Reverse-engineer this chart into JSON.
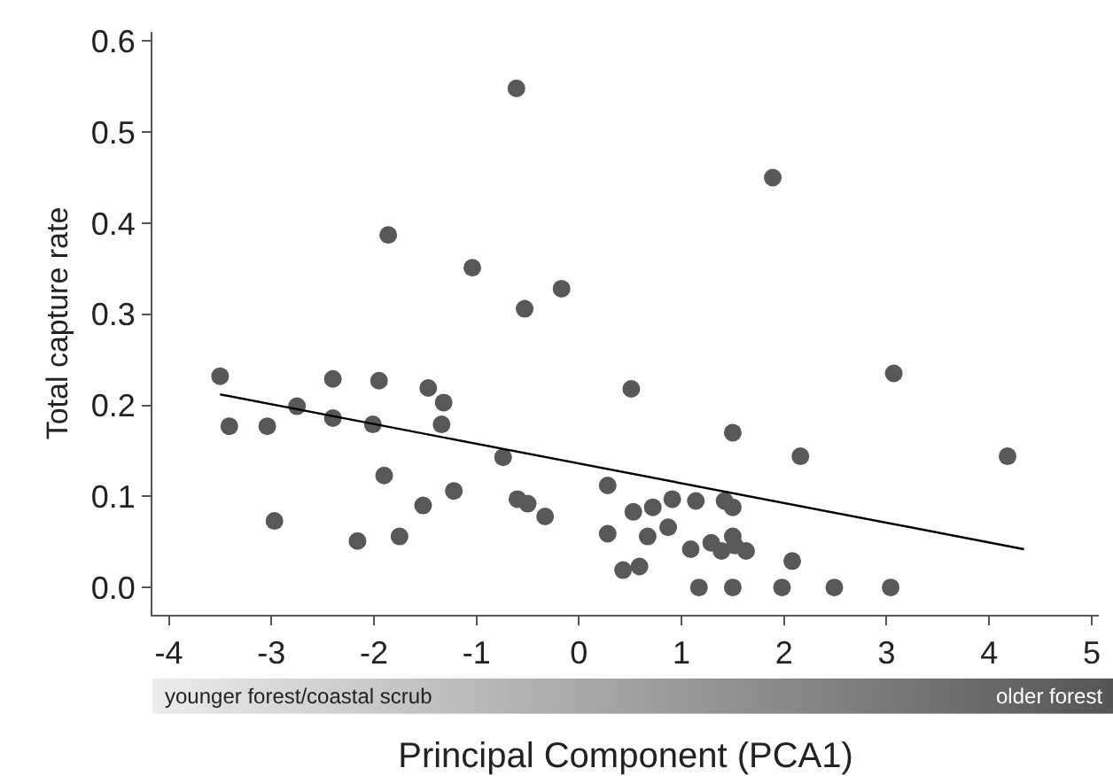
{
  "chart_data": {
    "type": "scatter",
    "xlabel": "Principal Component (PCA1)",
    "ylabel": "Total capture rate",
    "xlim": [
      -4.16,
      5.07
    ],
    "xticks": [
      -4,
      -3,
      -2,
      -1,
      0,
      1,
      2,
      3,
      4,
      5
    ],
    "ylim": [
      -0.03,
      0.61
    ],
    "yticks": [
      {
        "value": 0,
        "label": "0.0"
      },
      0.1,
      0.2,
      0.3,
      0.4,
      0.5,
      0.6
    ],
    "marker": "circle",
    "annotations": [
      "younger forest/coastal scrub",
      "older forest"
    ],
    "series": [
      {
        "color": "#585858",
        "x": [
          -3.5,
          -3.41,
          -3.04,
          -2.97,
          -2.75,
          -2.4,
          -2.4,
          -2.16,
          -2.01,
          -1.95,
          -1.9,
          -1.75,
          -1.52,
          -1.47,
          -1.32,
          -1.34,
          -1.22,
          -0.74,
          -0.6,
          -0.5,
          -0.33,
          -0.53,
          -0.61,
          -1.86,
          -1.04,
          -0.17,
          1.89,
          0.51,
          3.07,
          1.5,
          2.16,
          4.18,
          0.28,
          0.53,
          0.72,
          0.91,
          1.14,
          1.42,
          1.5,
          0.28,
          0.67,
          0.87,
          1.5,
          1.29,
          1.09,
          1.39,
          1.52,
          1.63,
          2.08,
          0.43,
          0.59,
          1.17,
          1.5,
          1.98,
          2.49,
          3.04
        ],
        "values": [
          0.232,
          0.177,
          0.177,
          0.073,
          0.199,
          0.229,
          0.186,
          0.051,
          0.179,
          0.227,
          0.123,
          0.056,
          0.09,
          0.219,
          0.203,
          0.179,
          0.106,
          0.143,
          0.097,
          0.092,
          0.078,
          0.306,
          0.548,
          0.387,
          0.351,
          0.328,
          0.45,
          0.218,
          0.235,
          0.17,
          0.144,
          0.144,
          0.112,
          0.083,
          0.088,
          0.097,
          0.095,
          0.095,
          0.088,
          0.059,
          0.056,
          0.066,
          0.056,
          0.049,
          0.042,
          0.04,
          0.046,
          0.04,
          0.029,
          0.019,
          0.023,
          0.0,
          0.0,
          0.0,
          0.0,
          0.0
        ]
      },
      {
        "type": "line",
        "marker": "none",
        "color": "#000000",
        "x": [
          -3.5,
          4.34
        ],
        "values": [
          0.212,
          0.042
        ]
      }
    ]
  }
}
